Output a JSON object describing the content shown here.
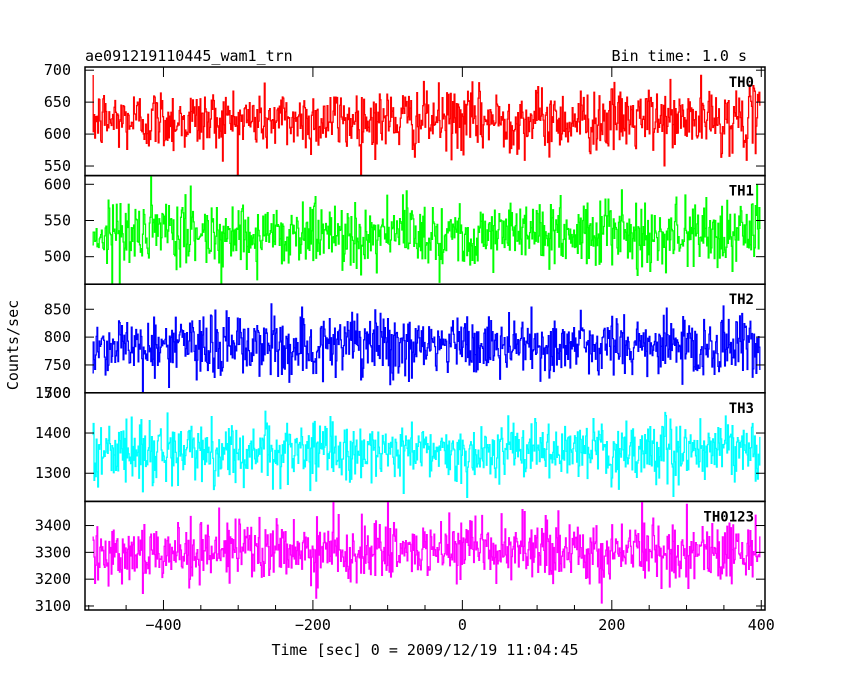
{
  "chart_data": {
    "type": "line",
    "title_left": "ae091219110445_wam1_trn",
    "title_right": "Bin time: 1.0 s",
    "xlabel": "Time [sec] 0 = 2009/12/19 11:04:45",
    "ylabel": "Counts/sec",
    "xlim": [
      -505,
      405
    ],
    "x_ticks": [
      -400,
      -200,
      0,
      200,
      400
    ],
    "x_data_range": [
      -495,
      398
    ],
    "bin_time": 1.0,
    "panels": [
      {
        "name": "TH0",
        "color": "#ff0000",
        "ylim": [
          535,
          705
        ],
        "y_ticks": [
          550,
          600,
          650,
          700
        ],
        "mean": 622,
        "sigma": 25
      },
      {
        "name": "TH1",
        "color": "#00ff00",
        "ylim": [
          462,
          612
        ],
        "y_ticks": [
          500,
          550,
          600
        ],
        "mean": 532,
        "sigma": 23
      },
      {
        "name": "TH2",
        "color": "#0000ff",
        "ylim": [
          700,
          895
        ],
        "y_ticks": [
          700,
          750,
          800,
          850
        ],
        "mean": 784,
        "sigma": 29
      },
      {
        "name": "TH3",
        "color": "#00ffff",
        "ylim": [
          1230,
          1500
        ],
        "y_ticks": [
          1300,
          1400,
          1500
        ],
        "mean": 1354,
        "sigma": 37
      },
      {
        "name": "TH0123",
        "color": "#ff00ff",
        "ylim": [
          3085,
          3490
        ],
        "y_ticks": [
          3100,
          3200,
          3300,
          3400
        ],
        "mean": 3304,
        "sigma": 57
      }
    ]
  }
}
